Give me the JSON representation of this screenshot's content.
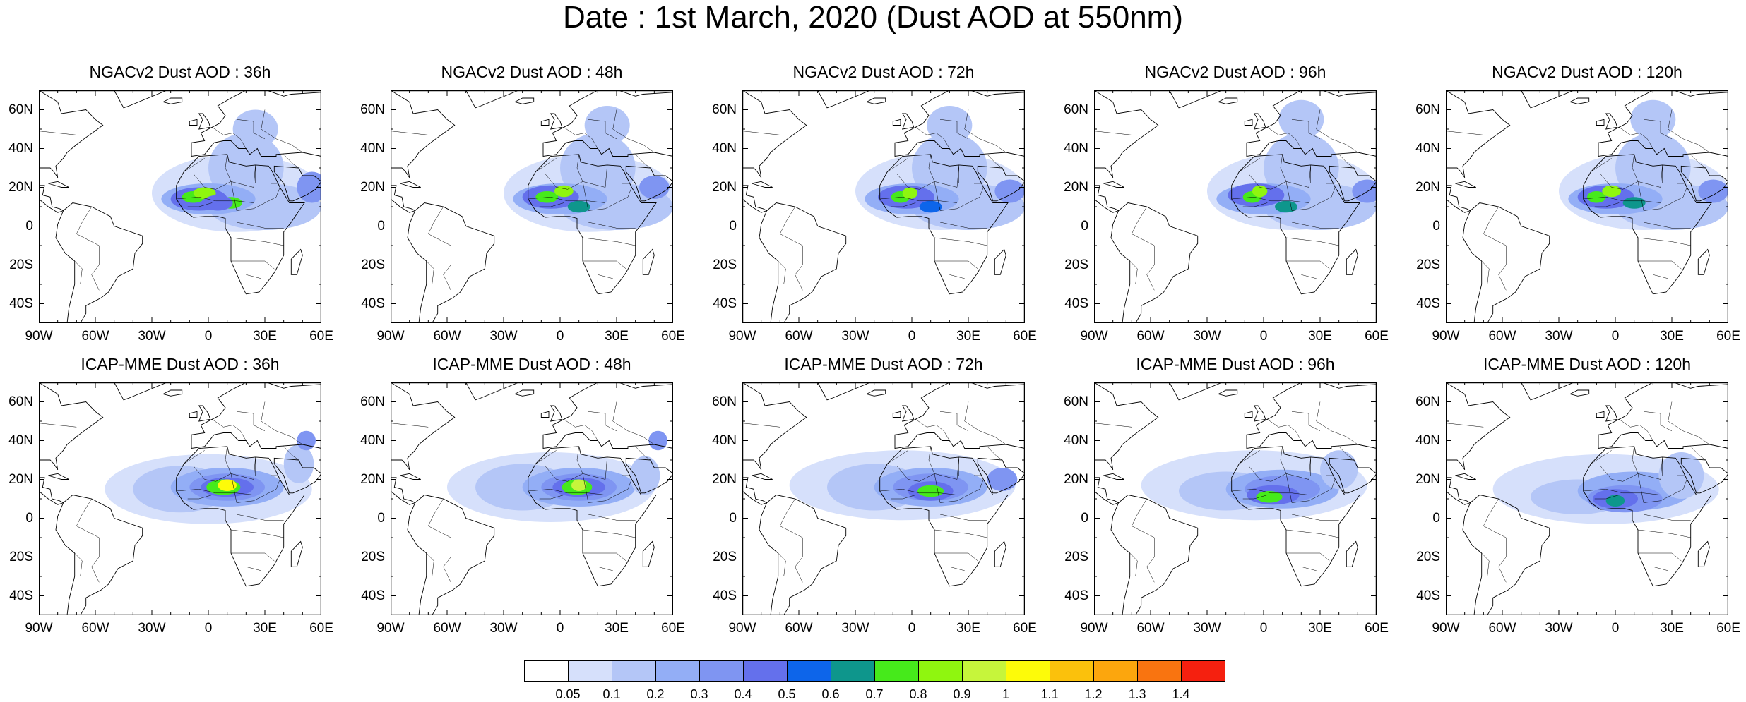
{
  "suptitle": "Date : 1st March, 2020 (Dust AOD at 550nm)",
  "rows": [
    {
      "model": "NGACv2",
      "panels": [
        {
          "title": "NGACv2 Dust AOD : 36h",
          "lead": "36h"
        },
        {
          "title": "NGACv2 Dust AOD : 48h",
          "lead": "48h"
        },
        {
          "title": "NGACv2 Dust AOD : 72h",
          "lead": "72h"
        },
        {
          "title": "NGACv2 Dust AOD : 96h",
          "lead": "96h"
        },
        {
          "title": "NGACv2 Dust AOD : 120h",
          "lead": "120h"
        }
      ]
    },
    {
      "model": "ICAP-MME",
      "panels": [
        {
          "title": "ICAP-MME Dust AOD : 36h",
          "lead": "36h"
        },
        {
          "title": "ICAP-MME Dust AOD : 48h",
          "lead": "48h"
        },
        {
          "title": "ICAP-MME Dust AOD : 72h",
          "lead": "72h"
        },
        {
          "title": "ICAP-MME Dust AOD : 96h",
          "lead": "96h"
        },
        {
          "title": "ICAP-MME Dust AOD : 120h",
          "lead": "120h"
        }
      ]
    }
  ],
  "lat_ticks": [
    "60N",
    "40N",
    "20N",
    "0",
    "20S",
    "40S"
  ],
  "lat_values": [
    60,
    40,
    20,
    0,
    -20,
    -40
  ],
  "lon_ticks": [
    "90W",
    "60W",
    "30W",
    "0",
    "30E",
    "60E"
  ],
  "lon_values": [
    -90,
    -60,
    -30,
    0,
    30,
    60
  ],
  "extent": {
    "lon": [
      -90,
      60
    ],
    "lat": [
      -50,
      70
    ]
  },
  "colorbar": {
    "colors": [
      "#ffffff",
      "#d6e0fb",
      "#b4c6f7",
      "#93aef6",
      "#7f95f2",
      "#6470ec",
      "#0d65ea",
      "#0e968c",
      "#46ea1b",
      "#8ff60f",
      "#c6f53b",
      "#fdfb09",
      "#fbc10c",
      "#fca60d",
      "#f97410",
      "#f5200f"
    ],
    "labels": [
      "0.05",
      "0.1",
      "0.2",
      "0.3",
      "0.4",
      "0.5",
      "0.6",
      "0.7",
      "0.8",
      "0.9",
      "1",
      "1.1",
      "1.2",
      "1.3",
      "1.4"
    ]
  }
}
